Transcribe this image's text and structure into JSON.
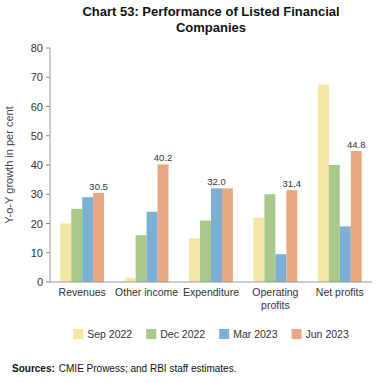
{
  "chart_data": {
    "type": "bar",
    "title": "Chart 53: Performance of Listed Financial\nCompanies",
    "categories": [
      "Revenues",
      "Other income",
      "Expenditure",
      "Operating\nprofits",
      "Net profits"
    ],
    "series": [
      {
        "name": "Sep 2022",
        "color": "#f5e6a3",
        "values": [
          20.0,
          1.5,
          15.0,
          22.0,
          67.5
        ]
      },
      {
        "name": "Dec 2022",
        "color": "#a8c98a",
        "values": [
          25.0,
          16.0,
          21.0,
          30.0,
          40.0
        ]
      },
      {
        "name": "Mar 2023",
        "color": "#7bafd4",
        "values": [
          29.0,
          24.0,
          32.0,
          9.5,
          19.0
        ]
      },
      {
        "name": "Jun 2023",
        "color": "#e8a882",
        "values": [
          30.5,
          40.2,
          32.0,
          31.4,
          44.8
        ]
      }
    ],
    "annotations": [
      {
        "category": "Revenues",
        "series": "Jun 2023",
        "value": 30.5,
        "label": "30.5"
      },
      {
        "category": "Other income",
        "series": "Jun 2023",
        "value": 40.2,
        "label": "40.2"
      },
      {
        "category": "Expenditure",
        "series": "Mar 2023",
        "value": 32.0,
        "label": "32.0"
      },
      {
        "category": "Operating\nprofits",
        "series": "Jun 2023",
        "value": 31.4,
        "label": "31.4"
      },
      {
        "category": "Net profits",
        "series": "Jun 2023",
        "value": 44.8,
        "label": "44.8"
      }
    ],
    "y_label": "Y-o-Y growth in per cent",
    "ylim": [
      0,
      80
    ],
    "yticks": [
      0,
      10,
      20,
      30,
      40,
      50,
      60,
      70,
      80
    ],
    "source": [
      "Sources:",
      "CMIE Prowess; and RBI staff estimates."
    ],
    "legend": "bottom",
    "grid": false
  }
}
